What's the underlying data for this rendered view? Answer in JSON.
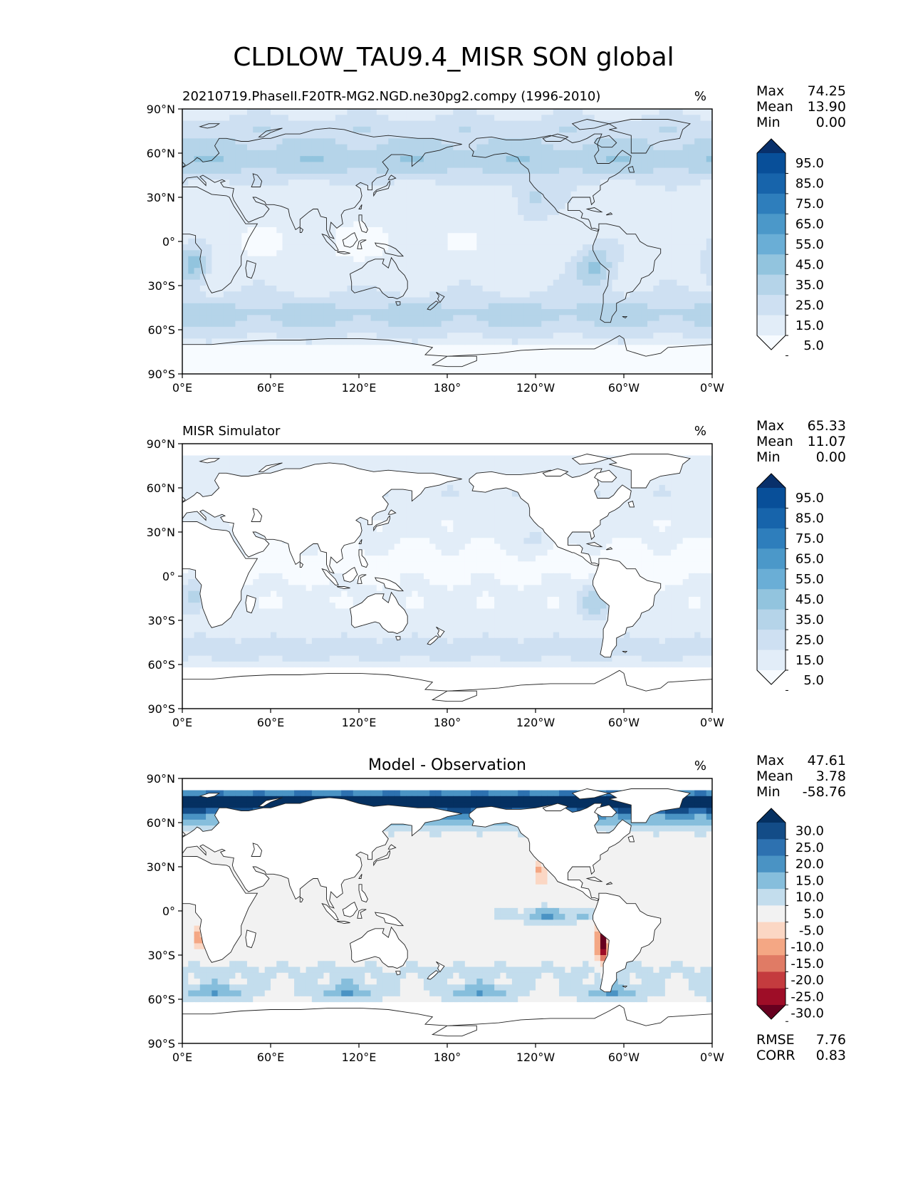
{
  "figure_title": "CLDLOW_TAU9.4_MISR SON global",
  "lat_ticks": [
    "90°N",
    "60°N",
    "30°N",
    "0°",
    "30°S",
    "60°S",
    "90°S"
  ],
  "lon_ticks": [
    "0°E",
    "60°E",
    "120°E",
    "180°",
    "120°W",
    "60°W",
    "0°W"
  ],
  "panels": [
    {
      "id": "test",
      "title_left": "20210719.PhaseII.F20TR-MG2.NGD.ne30pg2.compy (1996-2010)",
      "title_center": "",
      "units": "%",
      "stats": [
        {
          "label": "Max",
          "value": "74.25"
        },
        {
          "label": "Mean",
          "value": "13.90"
        },
        {
          "label": "Min",
          "value": "0.00"
        }
      ],
      "colorbar": {
        "type": "sequential",
        "labels": [
          "95.0",
          "85.0",
          "75.0",
          "65.0",
          "55.0",
          "45.0",
          "35.0",
          "25.0",
          "15.0",
          "5.0"
        ],
        "colors": [
          "#08306b",
          "#084f99",
          "#1764ab",
          "#2e7ebc",
          "#4b98c9",
          "#6aaed6",
          "#92c4de",
          "#b5d4e9",
          "#cee0f2",
          "#e2edf8",
          "#f7fbff"
        ]
      },
      "extra_stats": []
    },
    {
      "id": "reference",
      "title_left": "MISR Simulator",
      "title_center": "",
      "units": "%",
      "stats": [
        {
          "label": "Max",
          "value": "65.33"
        },
        {
          "label": "Mean",
          "value": "11.07"
        },
        {
          "label": "Min",
          "value": "0.00"
        }
      ],
      "colorbar": {
        "type": "sequential",
        "labels": [
          "95.0",
          "85.0",
          "75.0",
          "65.0",
          "55.0",
          "45.0",
          "35.0",
          "25.0",
          "15.0",
          "5.0"
        ],
        "colors": [
          "#08306b",
          "#084f99",
          "#1764ab",
          "#2e7ebc",
          "#4b98c9",
          "#6aaed6",
          "#92c4de",
          "#b5d4e9",
          "#cee0f2",
          "#e2edf8",
          "#f7fbff"
        ]
      },
      "extra_stats": []
    },
    {
      "id": "diff",
      "title_left": "",
      "title_center": "Model - Observation",
      "units": "%",
      "stats": [
        {
          "label": "Max",
          "value": "47.61"
        },
        {
          "label": "Mean",
          "value": "3.78"
        },
        {
          "label": "Min",
          "value": "-58.76"
        }
      ],
      "colorbar": {
        "type": "diverging",
        "labels": [
          "30.0",
          "25.0",
          "20.0",
          "15.0",
          "10.0",
          "5.0",
          "-5.0",
          "-10.0",
          "-15.0",
          "-20.0",
          "-25.0",
          "-30.0"
        ],
        "colors": [
          "#053061",
          "#134c87",
          "#2d71b0",
          "#4a93c4",
          "#86bedc",
          "#c3dded",
          "#f2f2f2",
          "#fbd7c4",
          "#f4a784",
          "#e07b65",
          "#c43b3e",
          "#9e0d27",
          "#67001f"
        ]
      },
      "extra_stats": [
        {
          "label": "RMSE",
          "value": "7.76"
        },
        {
          "label": "CORR",
          "value": "0.83"
        }
      ]
    }
  ]
}
